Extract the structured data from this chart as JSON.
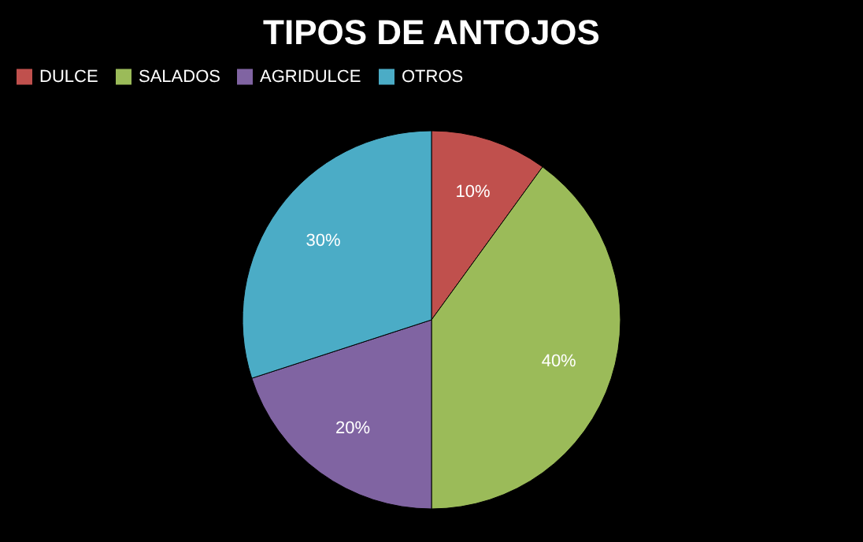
{
  "chart_data": {
    "type": "pie",
    "title": "TIPOS DE ANTOJOS",
    "categories": [
      "DULCE",
      "SALADOS",
      "AGRIDULCE",
      "OTROS"
    ],
    "values": [
      10,
      40,
      20,
      30
    ],
    "colors": [
      "#c0504d",
      "#9bbb59",
      "#8064a2",
      "#4bacc6"
    ],
    "value_labels": [
      "10%",
      "40%",
      "20%",
      "30%"
    ],
    "legend": "top"
  }
}
